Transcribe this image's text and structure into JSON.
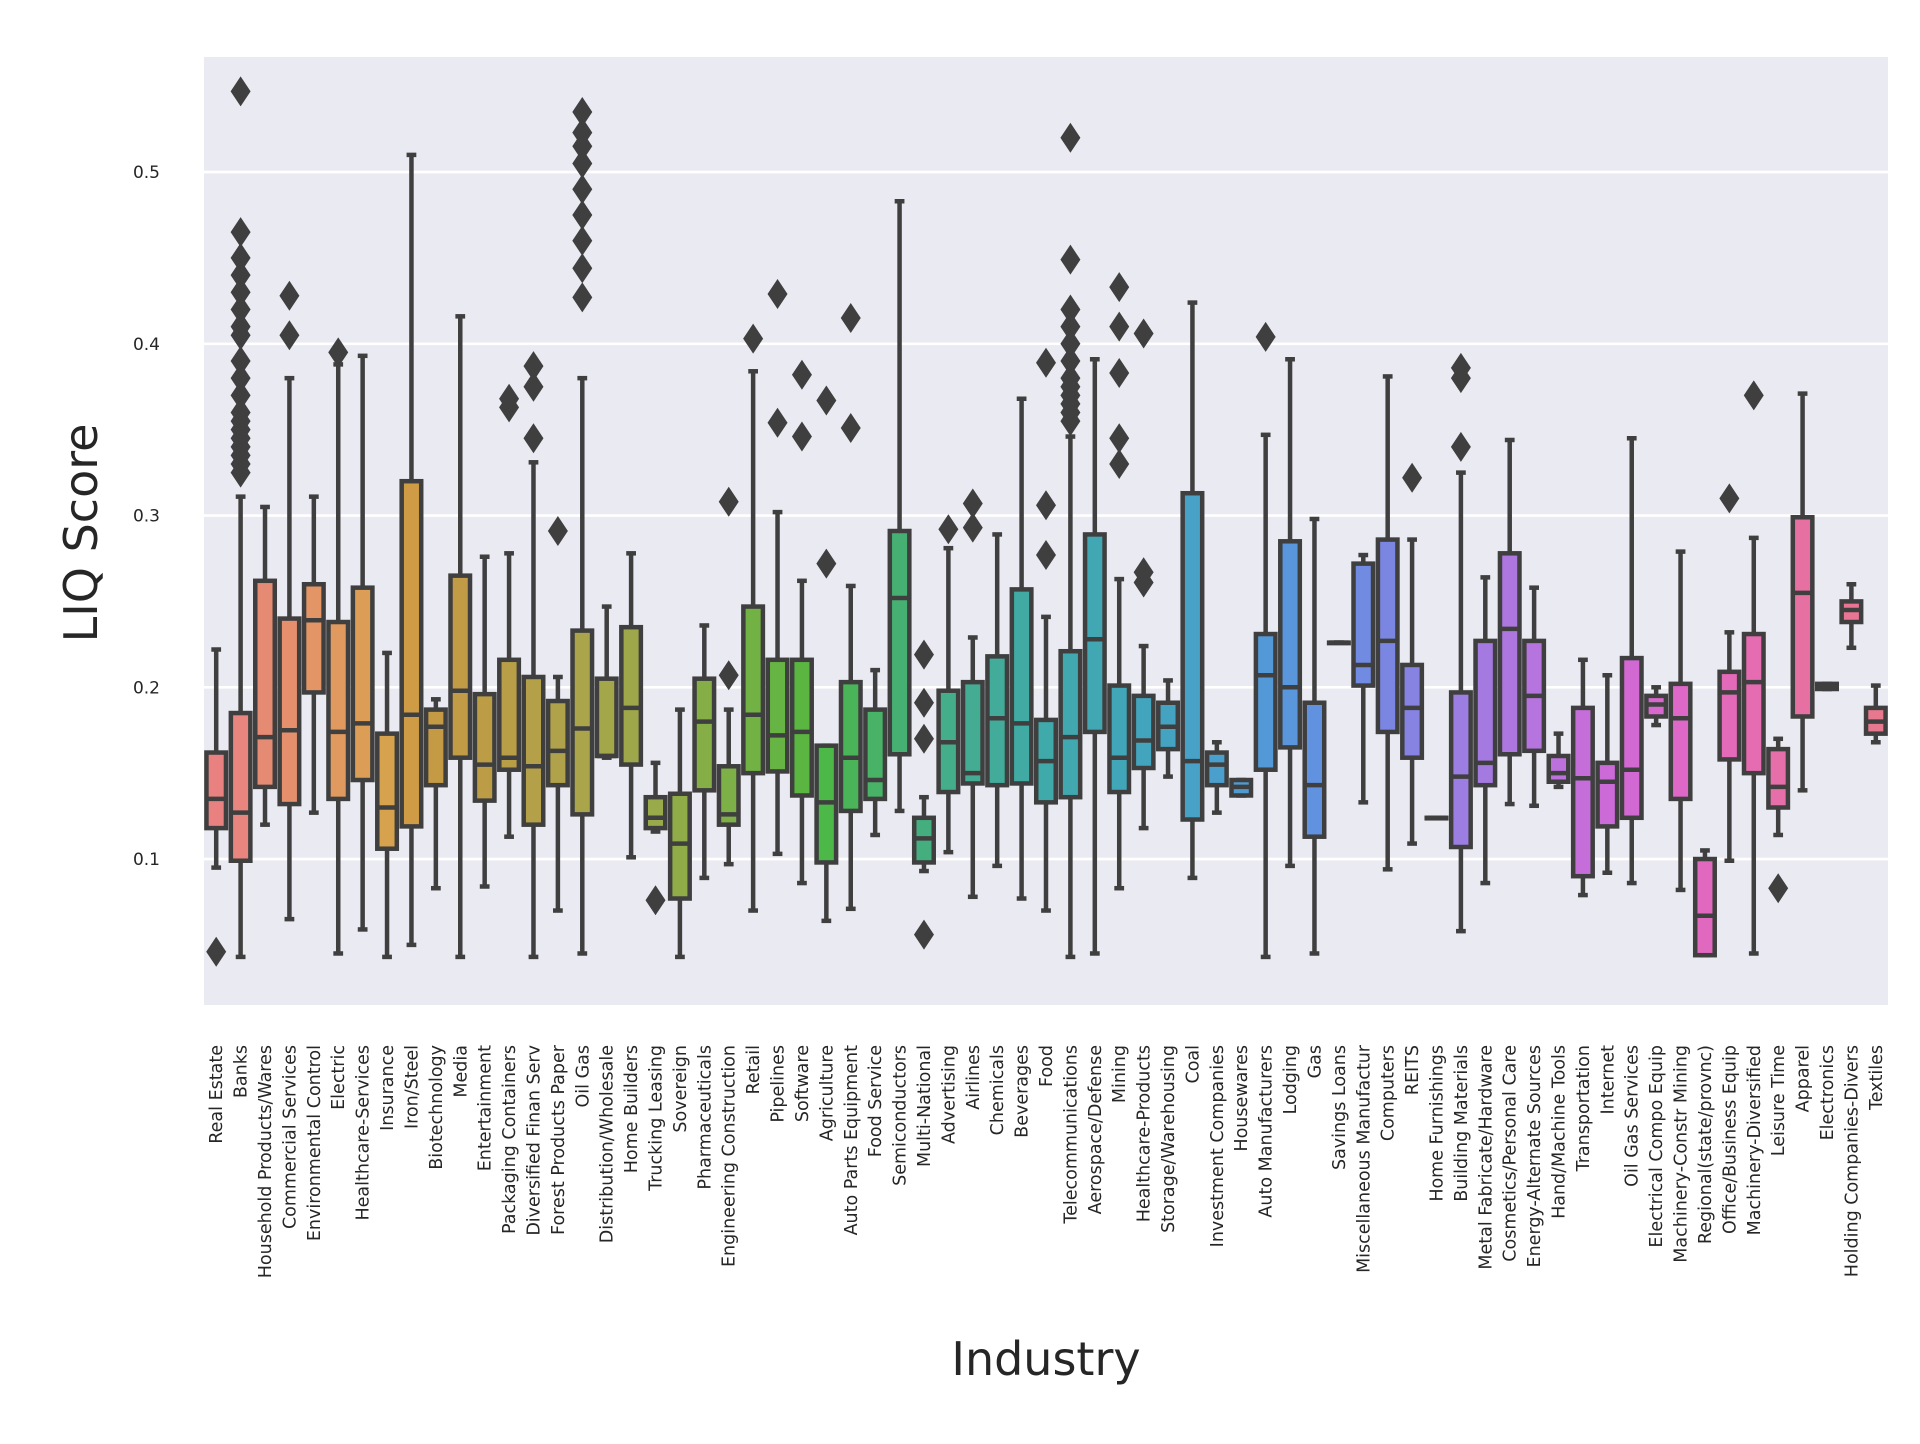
{
  "chart_data": {
    "type": "box",
    "title": "",
    "xlabel": "Industry",
    "ylabel": "LIQ Score",
    "ylim": [
      0.015,
      0.567
    ],
    "yticks": [
      0.1,
      0.2,
      0.3,
      0.4,
      0.5
    ],
    "ytick_labels": [
      "0.1",
      "0.2",
      "0.3",
      "0.4",
      "0.5"
    ],
    "grid": true,
    "legend": "none",
    "categories": [
      "Real Estate",
      "Banks",
      "Household Products/Wares",
      "Commercial Services",
      "Environmental Control",
      "Electric",
      "Healthcare-Services",
      "Insurance",
      "Iron/Steel",
      "Biotechnology",
      "Media",
      "Entertainment",
      "Packaging Containers",
      "Diversified Finan Serv",
      "Forest Products Paper",
      "Oil Gas",
      "Distribution/Wholesale",
      "Home Builders",
      "Trucking Leasing",
      "Sovereign",
      "Pharmaceuticals",
      "Engineering Construction",
      "Retail",
      "Pipelines",
      "Software",
      "Agriculture",
      "Auto Parts Equipment",
      "Food Service",
      "Semiconductors",
      "Multi-National",
      "Advertising",
      "Airlines",
      "Chemicals",
      "Beverages",
      "Food",
      "Telecommunications",
      "Aerospace/Defense",
      "Mining",
      "Healthcare-Products",
      "Storage/Warehousing",
      "Coal",
      "Investment Companies",
      "Housewares",
      "Auto Manufacturers",
      "Lodging",
      "Gas",
      "Savings Loans",
      "Miscellaneous Manufactur",
      "Computers",
      "REITS",
      "Home Furnishings",
      "Building Materials",
      "Metal Fabricate/Hardware",
      "Cosmetics/Personal Care",
      "Energy-Alternate Sources",
      "Hand/Machine Tools",
      "Transportation",
      "Internet",
      "Oil Gas Services",
      "Electrical Compo Equip",
      "Machinery-Constr Mining",
      "Regional(state/provnc)",
      "Office/Business Equip",
      "Machinery-Diversified",
      "Leisure Time",
      "Apparel",
      "Electronics",
      "Holding Companies-Divers",
      "Textiles"
    ],
    "colors": [
      "#e8817f",
      "#e8857e",
      "#e58b74",
      "#e58f6c",
      "#e39565",
      "#e0995f",
      "#dc9e56",
      "#d6a24d",
      "#cf9c45",
      "#c49a45",
      "#c19b45",
      "#bc9d46",
      "#b89f47",
      "#b4a049",
      "#afa24a",
      "#aaa44a",
      "#a4a64a",
      "#9ea84a",
      "#98aa49",
      "#8fac48",
      "#86ae47",
      "#7db046",
      "#72b244",
      "#66b443",
      "#5ab641",
      "#4bb848",
      "#4ab458",
      "#48b266",
      "#46b073",
      "#45ae7f",
      "#44ad89",
      "#43ac92",
      "#42ab9a",
      "#41aaa2",
      "#40a9a9",
      "#40a8ae",
      "#41a7b3",
      "#41a6b8",
      "#43a5bd",
      "#45a3c2",
      "#48a1c7",
      "#4b9fcc",
      "#4f9cd2",
      "#5499d7",
      "#5a96dc",
      "#6192df",
      "#688ee1",
      "#718ae2",
      "#7b86e3",
      "#8783e3",
      "#9280e3",
      "#9c7de2",
      "#a57ae0",
      "#ad77df",
      "#b574de",
      "#bd71dc",
      "#c56eda",
      "#cc6bd7",
      "#d269d3",
      "#d868ce",
      "#dd68c7",
      "#e069bf",
      "#e36ab8",
      "#e56cb0",
      "#e66ea9",
      "#e770a2",
      "#e8729b",
      "#e87594",
      "#e8788e"
    ],
    "boxes": [
      {
        "name": "Real Estate",
        "whisker_low": 0.095,
        "q1": 0.118,
        "median": 0.135,
        "q3": 0.162,
        "whisker_high": 0.222,
        "outliers": [
          0.046
        ]
      },
      {
        "name": "Banks",
        "whisker_low": 0.043,
        "q1": 0.099,
        "median": 0.127,
        "q3": 0.185,
        "whisker_high": 0.311,
        "outliers": [
          0.325,
          0.33,
          0.335,
          0.34,
          0.345,
          0.35,
          0.355,
          0.36,
          0.37,
          0.38,
          0.39,
          0.405,
          0.41,
          0.42,
          0.43,
          0.44,
          0.45,
          0.465,
          0.547
        ]
      },
      {
        "name": "Household Products/Wares",
        "whisker_low": 0.12,
        "q1": 0.142,
        "median": 0.171,
        "q3": 0.262,
        "whisker_high": 0.305,
        "outliers": []
      },
      {
        "name": "Commercial Services",
        "whisker_low": 0.065,
        "q1": 0.132,
        "median": 0.175,
        "q3": 0.24,
        "whisker_high": 0.38,
        "outliers": [
          0.405,
          0.428
        ]
      },
      {
        "name": "Environmental Control",
        "whisker_low": 0.127,
        "q1": 0.197,
        "median": 0.239,
        "q3": 0.26,
        "whisker_high": 0.311,
        "outliers": []
      },
      {
        "name": "Electric",
        "whisker_low": 0.045,
        "q1": 0.135,
        "median": 0.174,
        "q3": 0.238,
        "whisker_high": 0.388,
        "outliers": [
          0.395
        ]
      },
      {
        "name": "Healthcare-Services",
        "whisker_low": 0.059,
        "q1": 0.146,
        "median": 0.179,
        "q3": 0.258,
        "whisker_high": 0.393,
        "outliers": []
      },
      {
        "name": "Insurance",
        "whisker_low": 0.043,
        "q1": 0.106,
        "median": 0.13,
        "q3": 0.173,
        "whisker_high": 0.22,
        "outliers": []
      },
      {
        "name": "Iron/Steel",
        "whisker_low": 0.05,
        "q1": 0.119,
        "median": 0.184,
        "q3": 0.32,
        "whisker_high": 0.51,
        "outliers": []
      },
      {
        "name": "Biotechnology",
        "whisker_low": 0.083,
        "q1": 0.143,
        "median": 0.177,
        "q3": 0.187,
        "whisker_high": 0.193,
        "outliers": []
      },
      {
        "name": "Media",
        "whisker_low": 0.043,
        "q1": 0.159,
        "median": 0.198,
        "q3": 0.265,
        "whisker_high": 0.416,
        "outliers": []
      },
      {
        "name": "Entertainment",
        "whisker_low": 0.084,
        "q1": 0.134,
        "median": 0.155,
        "q3": 0.196,
        "whisker_high": 0.276,
        "outliers": []
      },
      {
        "name": "Packaging Containers",
        "whisker_low": 0.113,
        "q1": 0.152,
        "median": 0.159,
        "q3": 0.216,
        "whisker_high": 0.278,
        "outliers": [
          0.363,
          0.368
        ]
      },
      {
        "name": "Diversified Finan Serv",
        "whisker_low": 0.043,
        "q1": 0.12,
        "median": 0.154,
        "q3": 0.206,
        "whisker_high": 0.331,
        "outliers": [
          0.345,
          0.375,
          0.387
        ]
      },
      {
        "name": "Forest Products Paper",
        "whisker_low": 0.07,
        "q1": 0.143,
        "median": 0.163,
        "q3": 0.192,
        "whisker_high": 0.206,
        "outliers": [
          0.291
        ]
      },
      {
        "name": "Oil Gas",
        "whisker_low": 0.045,
        "q1": 0.126,
        "median": 0.176,
        "q3": 0.233,
        "whisker_high": 0.38,
        "outliers": [
          0.427,
          0.444,
          0.46,
          0.475,
          0.49,
          0.505,
          0.515,
          0.523,
          0.535
        ]
      },
      {
        "name": "Distribution/Wholesale",
        "whisker_low": 0.159,
        "q1": 0.16,
        "median": 0.16,
        "q3": 0.205,
        "whisker_high": 0.247,
        "outliers": []
      },
      {
        "name": "Home Builders",
        "whisker_low": 0.101,
        "q1": 0.155,
        "median": 0.188,
        "q3": 0.235,
        "whisker_high": 0.278,
        "outliers": []
      },
      {
        "name": "Trucking Leasing",
        "whisker_low": 0.116,
        "q1": 0.118,
        "median": 0.124,
        "q3": 0.136,
        "whisker_high": 0.156,
        "outliers": [
          0.076
        ]
      },
      {
        "name": "Sovereign",
        "whisker_low": 0.043,
        "q1": 0.077,
        "median": 0.109,
        "q3": 0.138,
        "whisker_high": 0.187,
        "outliers": []
      },
      {
        "name": "Pharmaceuticals",
        "whisker_low": 0.089,
        "q1": 0.14,
        "median": 0.18,
        "q3": 0.205,
        "whisker_high": 0.236,
        "outliers": []
      },
      {
        "name": "Engineering Construction",
        "whisker_low": 0.097,
        "q1": 0.12,
        "median": 0.126,
        "q3": 0.154,
        "whisker_high": 0.187,
        "outliers": [
          0.207,
          0.308
        ]
      },
      {
        "name": "Retail",
        "whisker_low": 0.07,
        "q1": 0.15,
        "median": 0.184,
        "q3": 0.247,
        "whisker_high": 0.384,
        "outliers": [
          0.403
        ]
      },
      {
        "name": "Pipelines",
        "whisker_low": 0.103,
        "q1": 0.151,
        "median": 0.172,
        "q3": 0.216,
        "whisker_high": 0.302,
        "outliers": [
          0.354,
          0.429
        ]
      },
      {
        "name": "Software",
        "whisker_low": 0.086,
        "q1": 0.137,
        "median": 0.174,
        "q3": 0.216,
        "whisker_high": 0.262,
        "outliers": [
          0.346,
          0.382
        ]
      },
      {
        "name": "Agriculture",
        "whisker_low": 0.064,
        "q1": 0.098,
        "median": 0.133,
        "q3": 0.166,
        "whisker_high": 0.166,
        "outliers": [
          0.272,
          0.367
        ]
      },
      {
        "name": "Auto Parts Equipment",
        "whisker_low": 0.071,
        "q1": 0.128,
        "median": 0.159,
        "q3": 0.203,
        "whisker_high": 0.259,
        "outliers": [
          0.351,
          0.415
        ]
      },
      {
        "name": "Food Service",
        "whisker_low": 0.114,
        "q1": 0.135,
        "median": 0.146,
        "q3": 0.187,
        "whisker_high": 0.21,
        "outliers": []
      },
      {
        "name": "Semiconductors",
        "whisker_low": 0.128,
        "q1": 0.161,
        "median": 0.252,
        "q3": 0.291,
        "whisker_high": 0.483,
        "outliers": []
      },
      {
        "name": "Multi-National",
        "whisker_low": 0.093,
        "q1": 0.098,
        "median": 0.112,
        "q3": 0.124,
        "whisker_high": 0.136,
        "outliers": [
          0.056,
          0.17,
          0.191,
          0.219
        ]
      },
      {
        "name": "Advertising",
        "whisker_low": 0.104,
        "q1": 0.139,
        "median": 0.168,
        "q3": 0.198,
        "whisker_high": 0.281,
        "outliers": [
          0.292
        ]
      },
      {
        "name": "Airlines",
        "whisker_low": 0.078,
        "q1": 0.144,
        "median": 0.15,
        "q3": 0.203,
        "whisker_high": 0.229,
        "outliers": [
          0.293,
          0.307
        ]
      },
      {
        "name": "Chemicals",
        "whisker_low": 0.096,
        "q1": 0.143,
        "median": 0.182,
        "q3": 0.218,
        "whisker_high": 0.289,
        "outliers": []
      },
      {
        "name": "Beverages",
        "whisker_low": 0.077,
        "q1": 0.144,
        "median": 0.179,
        "q3": 0.257,
        "whisker_high": 0.368,
        "outliers": []
      },
      {
        "name": "Food",
        "whisker_low": 0.07,
        "q1": 0.133,
        "median": 0.157,
        "q3": 0.181,
        "whisker_high": 0.241,
        "outliers": [
          0.277,
          0.306,
          0.389
        ]
      },
      {
        "name": "Telecommunications",
        "whisker_low": 0.043,
        "q1": 0.136,
        "median": 0.171,
        "q3": 0.221,
        "whisker_high": 0.346,
        "outliers": [
          0.355,
          0.36,
          0.365,
          0.37,
          0.375,
          0.38,
          0.39,
          0.4,
          0.41,
          0.42,
          0.449,
          0.52
        ]
      },
      {
        "name": "Aerospace/Defense",
        "whisker_low": 0.045,
        "q1": 0.174,
        "median": 0.228,
        "q3": 0.289,
        "whisker_high": 0.391,
        "outliers": []
      },
      {
        "name": "Mining",
        "whisker_low": 0.083,
        "q1": 0.139,
        "median": 0.159,
        "q3": 0.201,
        "whisker_high": 0.263,
        "outliers": [
          0.33,
          0.345,
          0.383,
          0.41,
          0.433
        ]
      },
      {
        "name": "Healthcare-Products",
        "whisker_low": 0.118,
        "q1": 0.153,
        "median": 0.169,
        "q3": 0.195,
        "whisker_high": 0.224,
        "outliers": [
          0.261,
          0.267,
          0.406
        ]
      },
      {
        "name": "Storage/Warehousing",
        "whisker_low": 0.148,
        "q1": 0.164,
        "median": 0.177,
        "q3": 0.191,
        "whisker_high": 0.204,
        "outliers": []
      },
      {
        "name": "Coal",
        "whisker_low": 0.089,
        "q1": 0.123,
        "median": 0.157,
        "q3": 0.313,
        "whisker_high": 0.424,
        "outliers": []
      },
      {
        "name": "Investment Companies",
        "whisker_low": 0.127,
        "q1": 0.143,
        "median": 0.155,
        "q3": 0.162,
        "whisker_high": 0.168,
        "outliers": []
      },
      {
        "name": "Housewares",
        "whisker_low": 0.137,
        "q1": 0.137,
        "median": 0.142,
        "q3": 0.146,
        "whisker_high": 0.146,
        "outliers": []
      },
      {
        "name": "Auto Manufacturers",
        "whisker_low": 0.043,
        "q1": 0.152,
        "median": 0.207,
        "q3": 0.231,
        "whisker_high": 0.347,
        "outliers": [
          0.404
        ]
      },
      {
        "name": "Lodging",
        "whisker_low": 0.096,
        "q1": 0.165,
        "median": 0.2,
        "q3": 0.285,
        "whisker_high": 0.391,
        "outliers": []
      },
      {
        "name": "Gas",
        "whisker_low": 0.045,
        "q1": 0.113,
        "median": 0.143,
        "q3": 0.191,
        "whisker_high": 0.298,
        "outliers": []
      },
      {
        "name": "Savings Loans",
        "whisker_low": 0.226,
        "q1": 0.226,
        "median": 0.226,
        "q3": 0.226,
        "whisker_high": 0.226,
        "outliers": []
      },
      {
        "name": "Miscellaneous Manufactur",
        "whisker_low": 0.133,
        "q1": 0.201,
        "median": 0.213,
        "q3": 0.272,
        "whisker_high": 0.277,
        "outliers": []
      },
      {
        "name": "Computers",
        "whisker_low": 0.094,
        "q1": 0.174,
        "median": 0.227,
        "q3": 0.286,
        "whisker_high": 0.381,
        "outliers": []
      },
      {
        "name": "REITS",
        "whisker_low": 0.109,
        "q1": 0.159,
        "median": 0.188,
        "q3": 0.213,
        "whisker_high": 0.286,
        "outliers": [
          0.322
        ]
      },
      {
        "name": "Home Furnishings",
        "whisker_low": 0.124,
        "q1": 0.124,
        "median": 0.124,
        "q3": 0.124,
        "whisker_high": 0.124,
        "outliers": []
      },
      {
        "name": "Building Materials",
        "whisker_low": 0.058,
        "q1": 0.107,
        "median": 0.148,
        "q3": 0.197,
        "whisker_high": 0.325,
        "outliers": [
          0.34,
          0.38,
          0.386
        ]
      },
      {
        "name": "Metal Fabricate/Hardware",
        "whisker_low": 0.086,
        "q1": 0.143,
        "median": 0.156,
        "q3": 0.227,
        "whisker_high": 0.264,
        "outliers": []
      },
      {
        "name": "Cosmetics/Personal Care",
        "whisker_low": 0.132,
        "q1": 0.161,
        "median": 0.234,
        "q3": 0.278,
        "whisker_high": 0.344,
        "outliers": []
      },
      {
        "name": "Energy-Alternate Sources",
        "whisker_low": 0.131,
        "q1": 0.163,
        "median": 0.195,
        "q3": 0.227,
        "whisker_high": 0.258,
        "outliers": []
      },
      {
        "name": "Hand/Machine Tools",
        "whisker_low": 0.142,
        "q1": 0.145,
        "median": 0.15,
        "q3": 0.16,
        "whisker_high": 0.173,
        "outliers": []
      },
      {
        "name": "Transportation",
        "whisker_low": 0.079,
        "q1": 0.09,
        "median": 0.147,
        "q3": 0.188,
        "whisker_high": 0.216,
        "outliers": []
      },
      {
        "name": "Internet",
        "whisker_low": 0.092,
        "q1": 0.119,
        "median": 0.145,
        "q3": 0.156,
        "whisker_high": 0.207,
        "outliers": []
      },
      {
        "name": "Oil Gas Services",
        "whisker_low": 0.086,
        "q1": 0.124,
        "median": 0.152,
        "q3": 0.217,
        "whisker_high": 0.345,
        "outliers": []
      },
      {
        "name": "Electrical Compo Equip",
        "whisker_low": 0.178,
        "q1": 0.183,
        "median": 0.19,
        "q3": 0.195,
        "whisker_high": 0.2,
        "outliers": []
      },
      {
        "name": "Machinery-Constr Mining",
        "whisker_low": 0.082,
        "q1": 0.135,
        "median": 0.182,
        "q3": 0.202,
        "whisker_high": 0.279,
        "outliers": []
      },
      {
        "name": "Regional(state/provnc)",
        "whisker_low": 0.044,
        "q1": 0.044,
        "median": 0.067,
        "q3": 0.1,
        "whisker_high": 0.105,
        "outliers": []
      },
      {
        "name": "Office/Business Equip",
        "whisker_low": 0.099,
        "q1": 0.158,
        "median": 0.197,
        "q3": 0.209,
        "whisker_high": 0.232,
        "outliers": [
          0.31
        ]
      },
      {
        "name": "Machinery-Diversified",
        "whisker_low": 0.045,
        "q1": 0.15,
        "median": 0.203,
        "q3": 0.231,
        "whisker_high": 0.287,
        "outliers": [
          0.37
        ]
      },
      {
        "name": "Leisure Time",
        "whisker_low": 0.114,
        "q1": 0.13,
        "median": 0.142,
        "q3": 0.164,
        "whisker_high": 0.17,
        "outliers": [
          0.083
        ]
      },
      {
        "name": "Apparel",
        "whisker_low": 0.14,
        "q1": 0.183,
        "median": 0.255,
        "q3": 0.299,
        "whisker_high": 0.371,
        "outliers": []
      },
      {
        "name": "Electronics",
        "whisker_low": 0.199,
        "q1": 0.199,
        "median": 0.2,
        "q3": 0.202,
        "whisker_high": 0.202,
        "outliers": []
      },
      {
        "name": "Holding Companies-Divers",
        "whisker_low": 0.223,
        "q1": 0.238,
        "median": 0.245,
        "q3": 0.25,
        "whisker_high": 0.26,
        "outliers": []
      },
      {
        "name": "Textiles",
        "whisker_low": 0.168,
        "q1": 0.173,
        "median": 0.18,
        "q3": 0.188,
        "whisker_high": 0.201,
        "outliers": []
      }
    ]
  }
}
